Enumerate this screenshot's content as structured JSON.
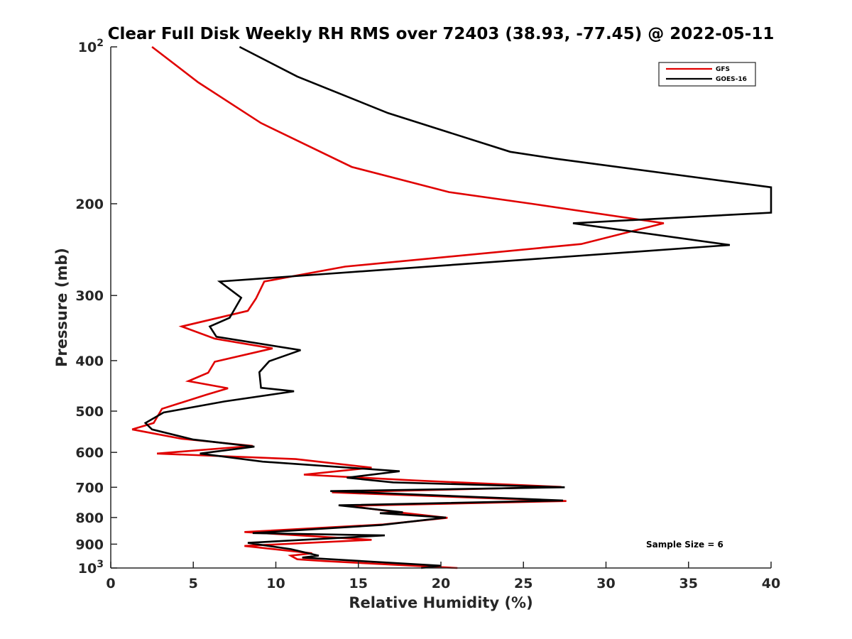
{
  "chart_data": {
    "type": "line",
    "title": "Clear Full Disk Weekly RH RMS over 72403 (38.93, -77.45) @ 2022-05-11",
    "xlabel": "Relative Humidity (%)",
    "ylabel": "Pressure (mb)",
    "xlim": [
      0,
      40
    ],
    "ylim": [
      100,
      1000
    ],
    "yscale": "log",
    "y_reversed": true,
    "xticks": [
      "0",
      "5",
      "10",
      "15",
      "20",
      "25",
      "30",
      "35",
      "40"
    ],
    "yticks": [
      {
        "value": 100,
        "label": "10",
        "sup": "2"
      },
      {
        "value": 200,
        "label": "200",
        "sup": ""
      },
      {
        "value": 300,
        "label": "300",
        "sup": ""
      },
      {
        "value": 400,
        "label": "400",
        "sup": ""
      },
      {
        "value": 500,
        "label": "500",
        "sup": ""
      },
      {
        "value": 600,
        "label": "600",
        "sup": ""
      },
      {
        "value": 700,
        "label": "700",
        "sup": ""
      },
      {
        "value": 800,
        "label": "800",
        "sup": ""
      },
      {
        "value": 900,
        "label": "900",
        "sup": ""
      },
      {
        "value": 1000,
        "label": "10",
        "sup": "3"
      }
    ],
    "legend_position": "top-right",
    "annotation": "Sample Size = 6",
    "series": [
      {
        "name": "GFS",
        "color": "#e00000",
        "points": [
          [
            2.5,
            100
          ],
          [
            5.3,
            117
          ],
          [
            9.1,
            140
          ],
          [
            14.6,
            170
          ],
          [
            20.5,
            190
          ],
          [
            25.5,
            200
          ],
          [
            33.5,
            218
          ],
          [
            28.5,
            239
          ],
          [
            14.2,
            264
          ],
          [
            9.3,
            282
          ],
          [
            8.8,
            304
          ],
          [
            8.3,
            321
          ],
          [
            4.3,
            344
          ],
          [
            6.3,
            363
          ],
          [
            9.8,
            379
          ],
          [
            6.3,
            402
          ],
          [
            5.9,
            422
          ],
          [
            4.7,
            438
          ],
          [
            7.1,
            452
          ],
          [
            5.8,
            465
          ],
          [
            3.1,
            495
          ],
          [
            2.6,
            527
          ],
          [
            1.3,
            542
          ],
          [
            4.3,
            565
          ],
          [
            8.6,
            583
          ],
          [
            2.8,
            603
          ],
          [
            11.2,
            618
          ],
          [
            15.8,
            642
          ],
          [
            11.7,
            662
          ],
          [
            18.3,
            679
          ],
          [
            27.3,
            699
          ],
          [
            13.4,
            716
          ],
          [
            27.6,
            744
          ],
          [
            14.4,
            760
          ],
          [
            17.4,
            782
          ],
          [
            20.4,
            801
          ],
          [
            16.5,
            825
          ],
          [
            8.1,
            853
          ],
          [
            15.8,
            883
          ],
          [
            8.1,
            907
          ],
          [
            12.2,
            937
          ],
          [
            10.9,
            947
          ],
          [
            11.3,
            962
          ],
          [
            13.0,
            970
          ],
          [
            21.0,
            1000
          ]
        ]
      },
      {
        "name": "GOES-16",
        "color": "#000000",
        "points": [
          [
            7.8,
            100
          ],
          [
            11.3,
            114
          ],
          [
            16.8,
            134
          ],
          [
            24.2,
            159
          ],
          [
            27.0,
            164
          ],
          [
            40.0,
            186
          ],
          [
            40.0,
            208
          ],
          [
            28.0,
            218
          ],
          [
            37.5,
            240
          ],
          [
            6.6,
            282
          ],
          [
            7.9,
            303
          ],
          [
            7.2,
            331
          ],
          [
            6.0,
            344
          ],
          [
            6.4,
            360
          ],
          [
            11.5,
            382
          ],
          [
            9.6,
            401
          ],
          [
            9.0,
            421
          ],
          [
            9.1,
            451
          ],
          [
            11.1,
            458
          ],
          [
            6.9,
            479
          ],
          [
            3.2,
            503
          ],
          [
            2.1,
            527
          ],
          [
            2.5,
            542
          ],
          [
            5.0,
            567
          ],
          [
            8.7,
            585
          ],
          [
            5.4,
            603
          ],
          [
            9.2,
            625
          ],
          [
            17.5,
            652
          ],
          [
            14.3,
            671
          ],
          [
            17.1,
            685
          ],
          [
            27.5,
            700
          ],
          [
            13.3,
            712
          ],
          [
            27.4,
            742
          ],
          [
            13.8,
            758
          ],
          [
            17.7,
            782
          ],
          [
            16.3,
            785
          ],
          [
            20.3,
            800
          ],
          [
            16.4,
            827
          ],
          [
            8.6,
            857
          ],
          [
            16.6,
            866
          ],
          [
            8.3,
            895
          ],
          [
            10.9,
            920
          ],
          [
            12.6,
            947
          ],
          [
            11.6,
            955
          ],
          [
            20.0,
            990
          ],
          [
            18.8,
            1000
          ]
        ]
      }
    ]
  }
}
